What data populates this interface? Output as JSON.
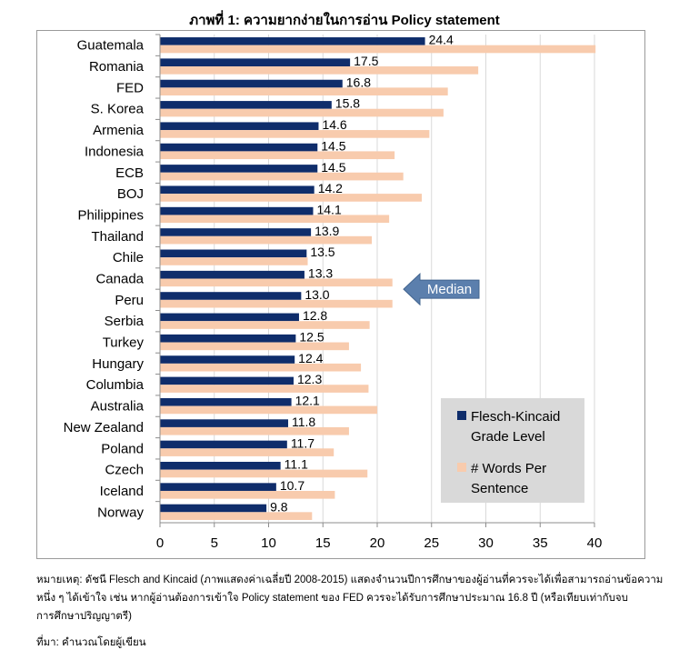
{
  "title": "ภาพที่ 1: ความยากง่ายในการอ่าน Policy statement",
  "chart_data": {
    "type": "bar",
    "orientation": "horizontal",
    "categories": [
      "Guatemala",
      "Romania",
      "FED",
      "S. Korea",
      "Armenia",
      "Indonesia",
      "ECB",
      "BOJ",
      "Philippines",
      "Thailand",
      "Chile",
      "Canada",
      "Peru",
      "Serbia",
      "Turkey",
      "Hungary",
      "Columbia",
      "Australia",
      "New Zealand",
      "Poland",
      "Czech",
      "Iceland",
      "Norway"
    ],
    "series": [
      {
        "name": "Flesch-Kincaid Grade Level",
        "color": "#0f2d6b",
        "values": [
          24.4,
          17.5,
          16.8,
          15.8,
          14.6,
          14.5,
          14.5,
          14.2,
          14.1,
          13.9,
          13.5,
          13.3,
          13.0,
          12.8,
          12.5,
          12.4,
          12.3,
          12.1,
          11.8,
          11.7,
          11.1,
          10.7,
          9.8
        ],
        "data_labels": [
          "24.4",
          "17.5",
          "16.8",
          "15.8",
          "14.6",
          "14.5",
          "14.5",
          "14.2",
          "14.1",
          "13.9",
          "13.5",
          "13.3",
          "13.0",
          "12.8",
          "12.5",
          "12.4",
          "12.3",
          "12.1",
          "11.8",
          "11.7",
          "11.1",
          "10.7",
          "9.8"
        ]
      },
      {
        "name": "# Words Per Sentence",
        "color": "#f8cbad",
        "values": [
          40.1,
          29.3,
          26.5,
          26.1,
          24.8,
          21.6,
          22.4,
          24.1,
          21.1,
          19.5,
          13.6,
          21.4,
          21.4,
          19.3,
          17.4,
          18.5,
          19.2,
          20.0,
          17.4,
          16.0,
          19.1,
          16.1,
          14.0
        ]
      }
    ],
    "xlim": [
      0,
      40
    ],
    "xticks": [
      "0",
      "5",
      "10",
      "15",
      "20",
      "25",
      "30",
      "35",
      "40"
    ],
    "grid": "vertical",
    "legend": {
      "placement": "bottom-right",
      "series1_lines": [
        "Flesch-Kincaid",
        "Grade Level"
      ],
      "series2_lines": [
        "# Words Per",
        "Sentence"
      ]
    },
    "annotation": {
      "text": "Median",
      "category": "Canada"
    }
  },
  "notes": {
    "line1": "หมายเหตุ: ดัชนี Flesch and Kincaid (ภาพแสดงค่าเฉลี่ยปี 2008-2015) แสดงจำนวนปีการศึกษาของผู้อ่านที่ควรจะได้เพื่อสามารถอ่านข้อความ",
    "line2": "หนึ่ง ๆ ได้เข้าใจ เช่น หากผู้อ่านต้องการเข้าใจ Policy statement ของ FED ควรจะได้รับการศึกษาประมาณ 16.8 ปี (หรือเทียบเท่ากับจบ",
    "line3": "การศึกษาปริญญาตรี)",
    "source": "ที่มา: คำนวณโดยผู้เขียน"
  },
  "colors": {
    "grid": "#d9d9d9",
    "axis": "#8c8c8c",
    "legend_bg": "#d9d9d9",
    "median_arrow": "#5b7fad"
  }
}
